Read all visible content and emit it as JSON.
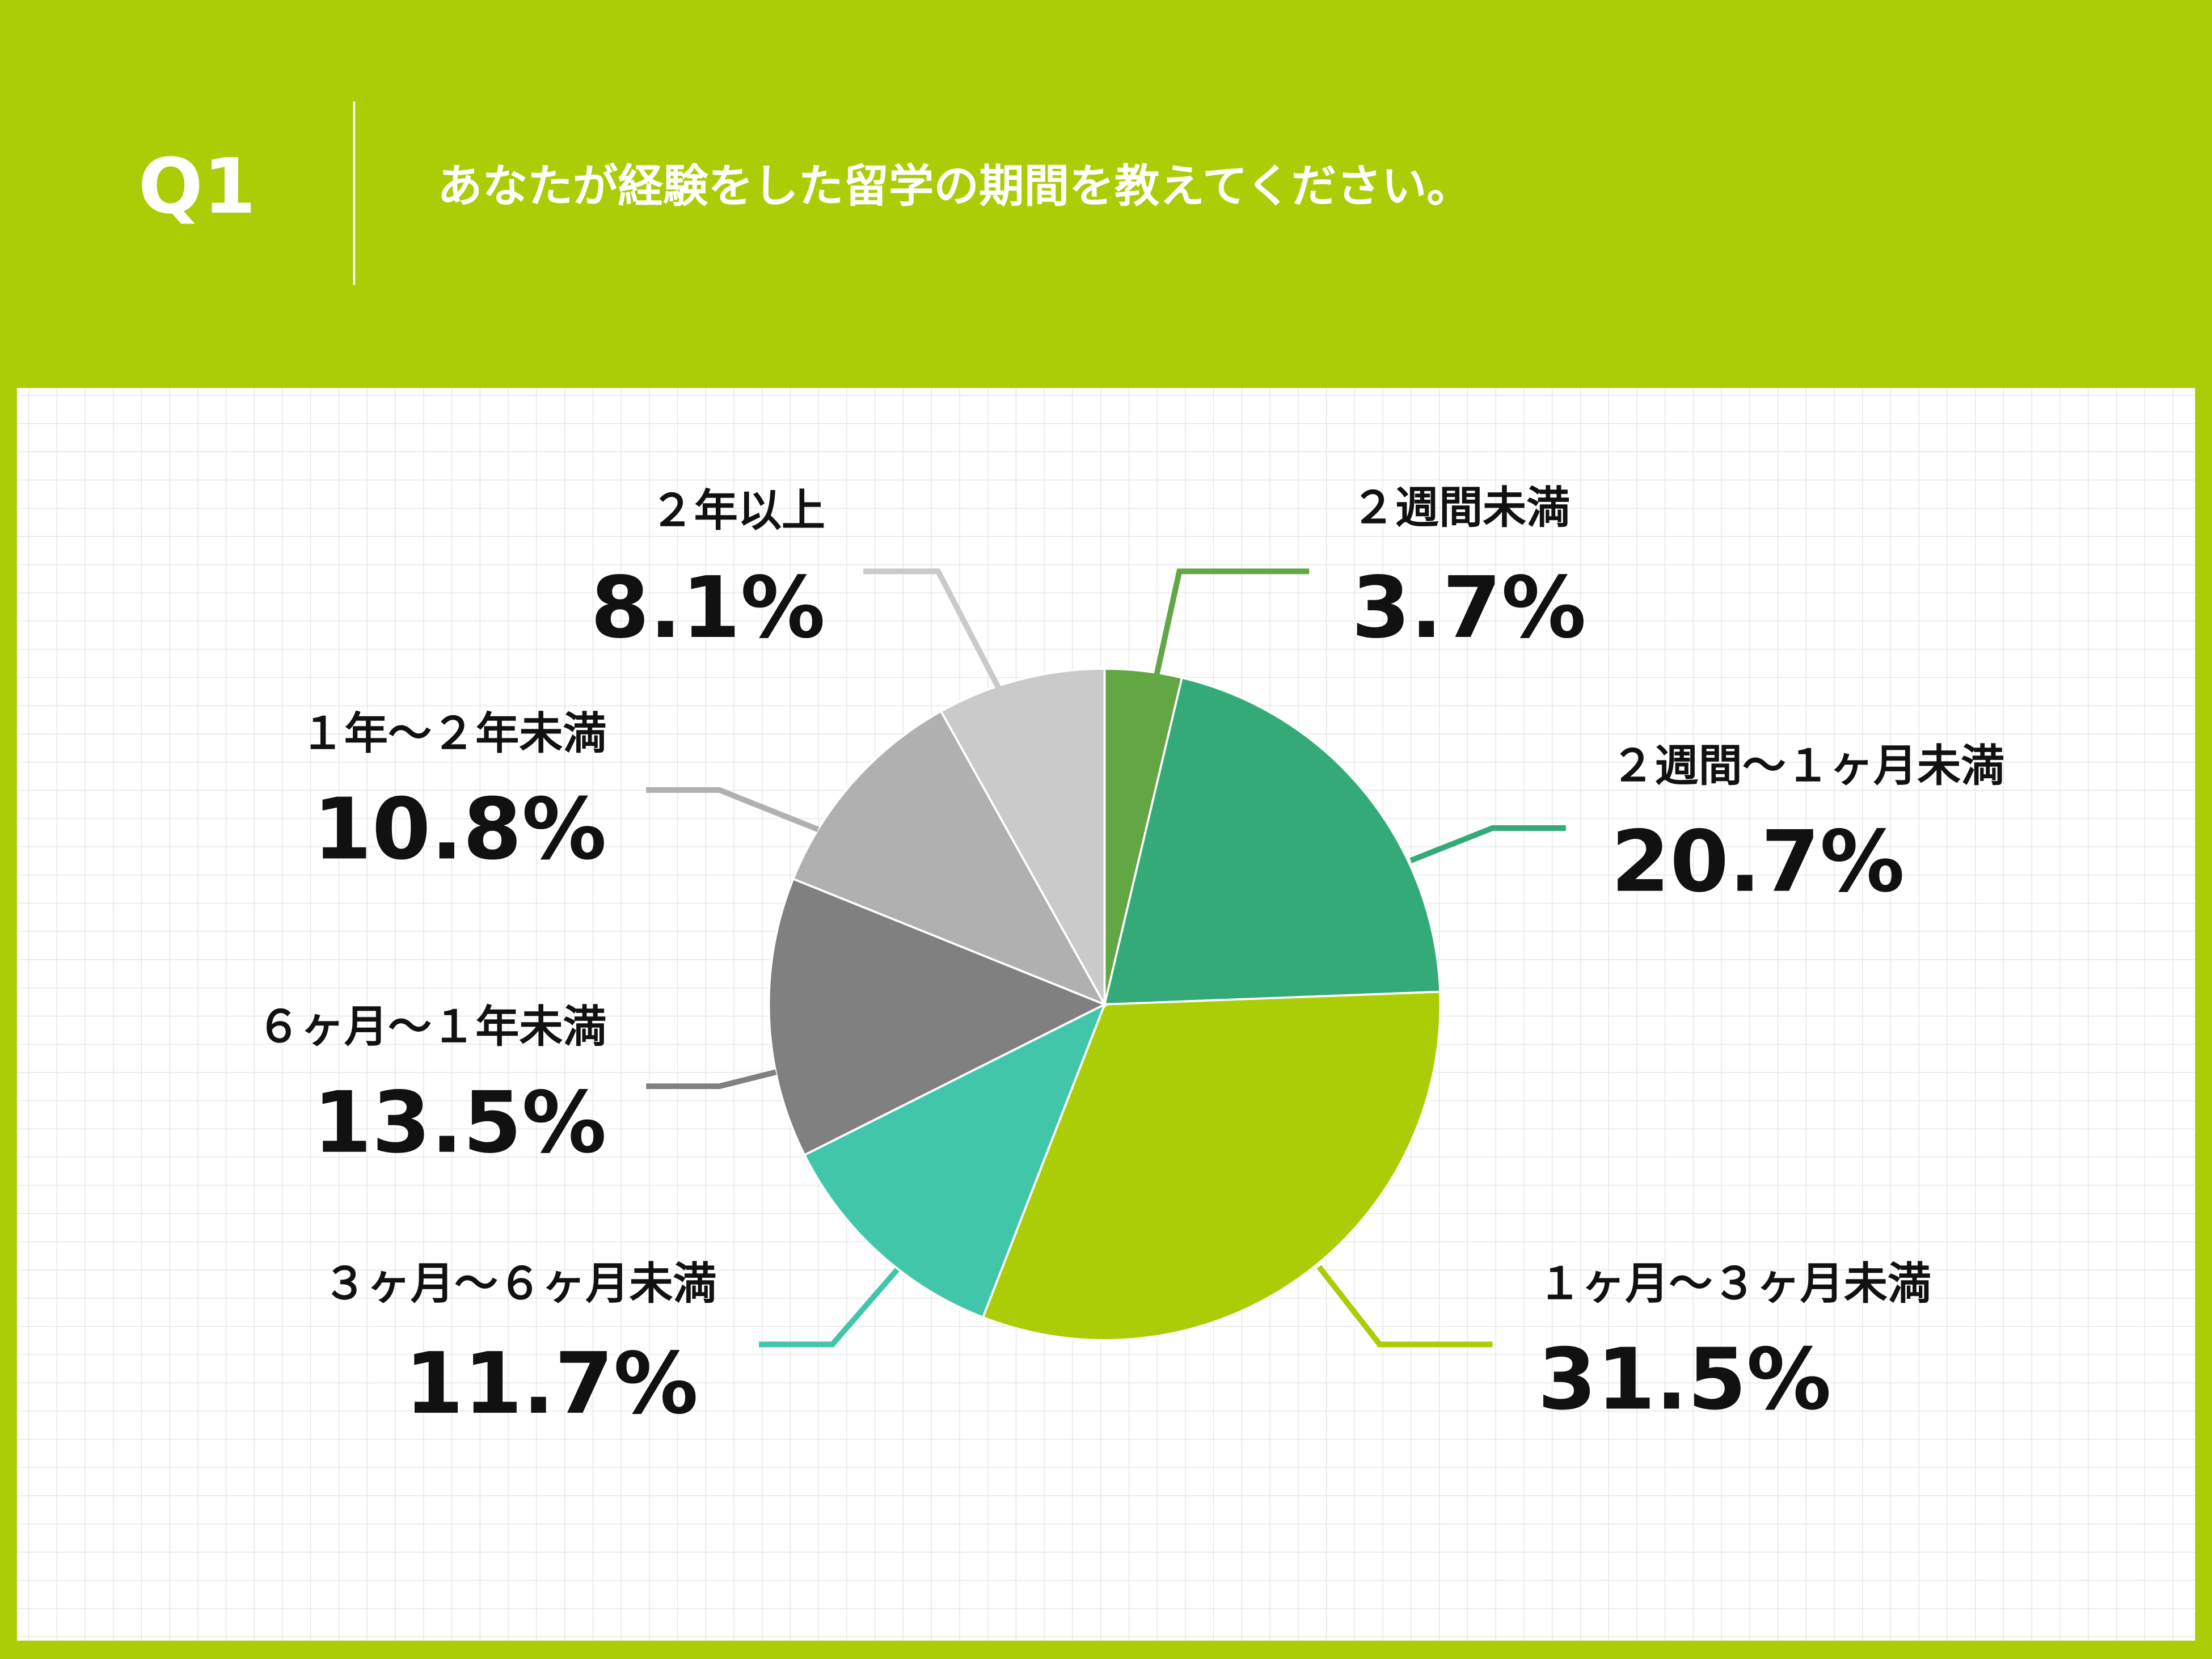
{
  "header": {
    "number": "Q1",
    "question": "あなたが経験をした留学の期間を教えてください。"
  },
  "chart_data": {
    "type": "pie",
    "categories": [
      "２週間未満",
      "２週間〜１ヶ月未満",
      "１ヶ月〜３ヶ月未満",
      "３ヶ月〜６ヶ月未満",
      "６ヶ月〜１年未満",
      "１年〜２年未満",
      "２年以上"
    ],
    "values": [
      3.7,
      20.7,
      31.5,
      11.7,
      13.5,
      10.8,
      8.1
    ],
    "value_labels": [
      "3.7%",
      "20.7%",
      "31.5%",
      "11.7%",
      "13.5%",
      "10.8%",
      "8.1%"
    ],
    "colors": [
      "#62a744",
      "#34aa78",
      "#aacd06",
      "#42c6aa",
      "#808080",
      "#b0b0b0",
      "#cacaca"
    ]
  }
}
